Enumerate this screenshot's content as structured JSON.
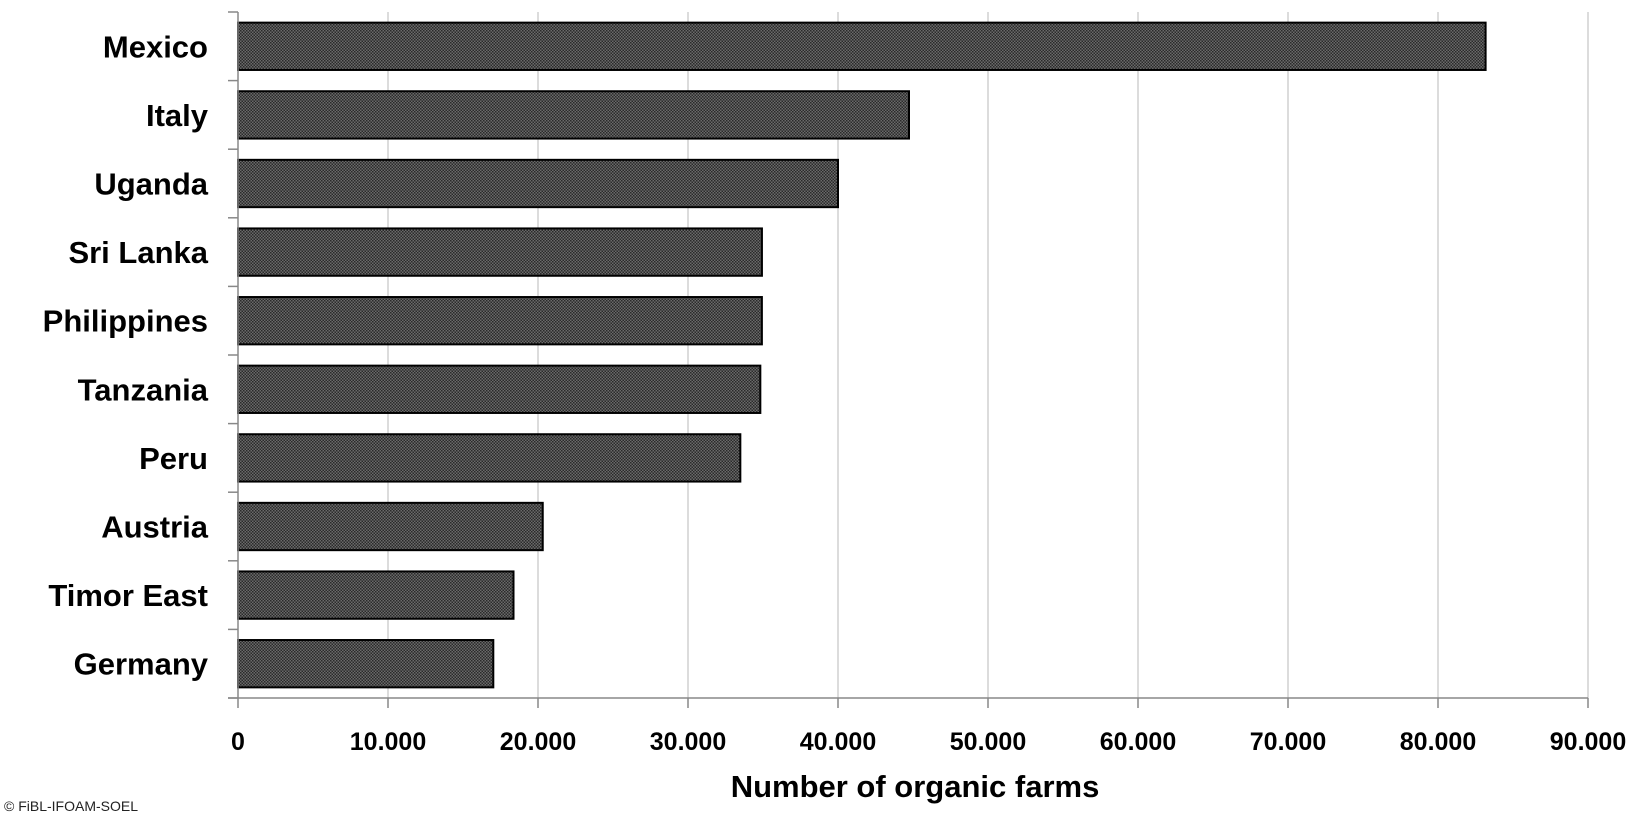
{
  "chart_data": {
    "type": "bar",
    "orientation": "horizontal",
    "categories": [
      "Mexico",
      "Italy",
      "Uganda",
      "Sri Lanka",
      "Philippines",
      "Tanzania",
      "Peru",
      "Austria",
      "Timor East",
      "Germany"
    ],
    "values": [
      83174,
      44733,
      40000,
      34929,
      34926,
      34822,
      33489,
      20316,
      18367,
      17020
    ],
    "xlabel": "Number of organic farms",
    "xlim": [
      0,
      90000
    ],
    "xticks": [
      "0",
      "10.000",
      "20.000",
      "30.000",
      "40.000",
      "50.000",
      "60.000",
      "70.000",
      "80.000",
      "90.000"
    ],
    "grid": "vertical",
    "bar_color": "#595959",
    "bar_pattern": "dotted-hatch",
    "source": "© FiBL-IFOAM-SOEL"
  }
}
